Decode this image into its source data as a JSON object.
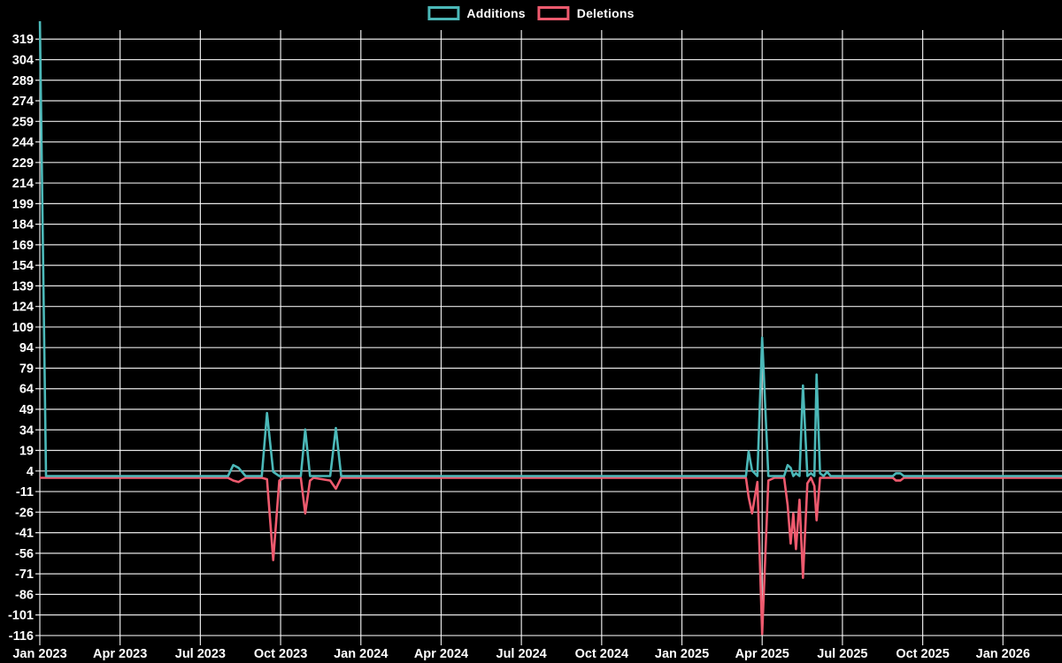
{
  "chart_data": {
    "type": "line",
    "title": "",
    "background": "#000000",
    "grid": true,
    "legend_position": "top-center",
    "legend": [
      {
        "label": "Additions",
        "color": "#4bb8b8"
      },
      {
        "label": "Deletions",
        "color": "#ee5a6e"
      }
    ],
    "colors": {
      "additions": "#4bb8b8",
      "deletions": "#ee5a6e",
      "gridline": "#ffffff",
      "text": "#ffffff"
    },
    "y_axis": {
      "min": -116,
      "max": 326,
      "tick_step": 15
    },
    "y_ticks": [
      319,
      304,
      289,
      274,
      259,
      244,
      229,
      214,
      199,
      184,
      169,
      154,
      139,
      124,
      109,
      94,
      79,
      64,
      49,
      34,
      19,
      4,
      -11,
      -26,
      -41,
      -56,
      -71,
      -86,
      -101,
      -116
    ],
    "x_tick_labels": [
      "Jan 2023",
      "Apr 2023",
      "Jul 2023",
      "Oct 2023",
      "Jan 2024",
      "Apr 2024",
      "Jul 2024",
      "Oct 2024",
      "Jan 2025",
      "Apr 2025",
      "Jul 2025",
      "Oct 2025",
      "Jan 2026"
    ],
    "x_axis": {
      "start": "2023-01-01",
      "end": "2026-03-08",
      "tick_interval": "quarter"
    },
    "series_names": [
      "Additions",
      "Deletions"
    ],
    "points_format": [
      "date",
      "additions",
      "deletions"
    ],
    "points": [
      [
        "2023-01-01",
        335,
        0
      ],
      [
        "2023-01-08",
        0,
        0
      ],
      [
        "2023-08-02",
        0,
        0
      ],
      [
        "2023-08-08",
        8,
        -2
      ],
      [
        "2023-08-14",
        6,
        -3
      ],
      [
        "2023-08-22",
        0,
        0
      ],
      [
        "2023-09-10",
        0,
        0
      ],
      [
        "2023-09-16",
        46,
        -1
      ],
      [
        "2023-09-23",
        3,
        -60
      ],
      [
        "2023-09-30",
        0,
        -2
      ],
      [
        "2023-10-05",
        0,
        0
      ],
      [
        "2023-10-24",
        0,
        0
      ],
      [
        "2023-10-29",
        34,
        -26
      ],
      [
        "2023-11-04",
        0,
        -2
      ],
      [
        "2023-11-08",
        0,
        0
      ],
      [
        "2023-11-27",
        0,
        -2
      ],
      [
        "2023-12-03",
        35,
        -8
      ],
      [
        "2023-12-09",
        0,
        0
      ],
      [
        "2025-03-13",
        0,
        0
      ],
      [
        "2025-03-16",
        18,
        -14
      ],
      [
        "2025-03-20",
        4,
        -26
      ],
      [
        "2025-03-26",
        0,
        -3
      ],
      [
        "2025-04-01",
        101,
        -114
      ],
      [
        "2025-04-08",
        0,
        -2
      ],
      [
        "2025-04-15",
        0,
        0
      ],
      [
        "2025-04-26",
        0,
        0
      ],
      [
        "2025-04-30",
        8,
        -20
      ],
      [
        "2025-05-03",
        6,
        -48
      ],
      [
        "2025-05-06",
        0,
        -26
      ],
      [
        "2025-05-09",
        2,
        -52
      ],
      [
        "2025-05-13",
        0,
        -16
      ],
      [
        "2025-05-17",
        66,
        -73
      ],
      [
        "2025-05-22",
        0,
        -4
      ],
      [
        "2025-05-26",
        2,
        0
      ],
      [
        "2025-05-30",
        0,
        -6
      ],
      [
        "2025-06-02",
        74,
        -31
      ],
      [
        "2025-06-06",
        2,
        0
      ],
      [
        "2025-06-10",
        0,
        0
      ],
      [
        "2025-06-14",
        3,
        0
      ],
      [
        "2025-06-18",
        0,
        0
      ],
      [
        "2025-08-28",
        0,
        0
      ],
      [
        "2025-09-01",
        2,
        -2
      ],
      [
        "2025-09-06",
        2,
        -2
      ],
      [
        "2025-09-10",
        0,
        0
      ],
      [
        "2026-03-08",
        0,
        0
      ]
    ]
  }
}
